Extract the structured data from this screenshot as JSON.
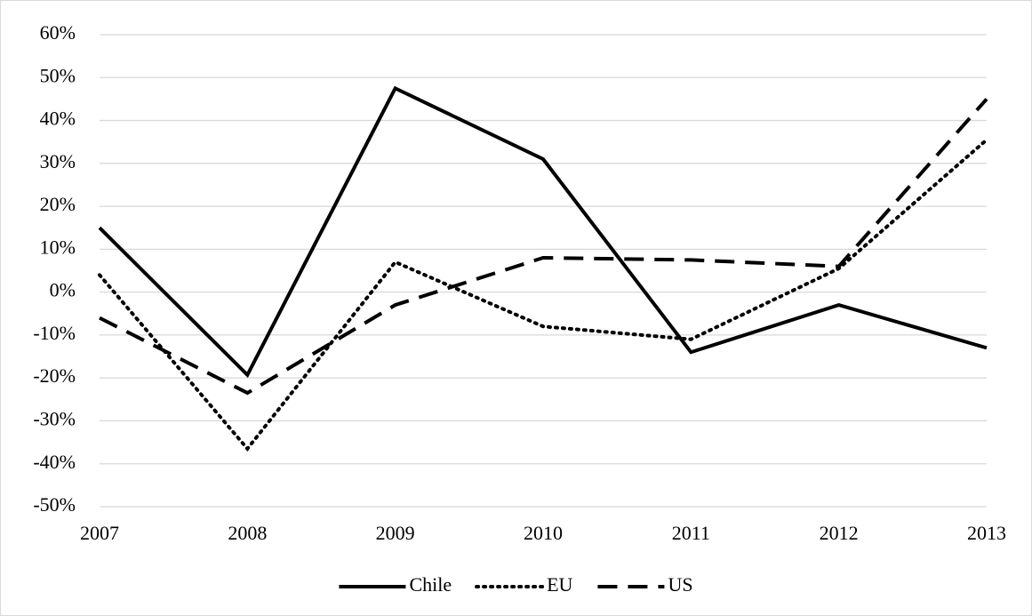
{
  "chart_data": {
    "type": "line",
    "x": [
      2007,
      2008,
      2009,
      2010,
      2011,
      2012,
      2013
    ],
    "xlim": [
      2007,
      2013
    ],
    "xticks": [
      2007,
      2008,
      2009,
      2010,
      2011,
      2012,
      2013
    ],
    "ylim": [
      -50,
      60
    ],
    "yticks": [
      {
        "value": -50,
        "label": "-50%"
      },
      {
        "value": -40,
        "label": "-40%"
      },
      {
        "value": -30,
        "label": "-30%"
      },
      {
        "value": -20,
        "label": "-20%"
      },
      {
        "value": -10,
        "label": "-10%"
      },
      {
        "value": 0,
        "label": "0%"
      },
      {
        "value": 10,
        "label": "10%"
      },
      {
        "value": 20,
        "label": "20%"
      },
      {
        "value": 30,
        "label": "30%"
      },
      {
        "value": 40,
        "label": "40%"
      },
      {
        "value": 50,
        "label": "50%"
      },
      {
        "value": 60,
        "label": "60%"
      }
    ],
    "grid": true,
    "legend": "bottom",
    "series": [
      {
        "name": "Chile",
        "color": "#000000",
        "style": "solid",
        "values": [
          15,
          -19.3,
          47.5,
          31,
          -14,
          -3,
          -13
        ]
      },
      {
        "name": "EU",
        "color": "#000000",
        "style": "dotted",
        "values": [
          4,
          -36.5,
          7,
          -8,
          -11,
          5.5,
          35.5
        ]
      },
      {
        "name": "US",
        "color": "#000000",
        "style": "dashed",
        "values": [
          -6,
          -23.5,
          -3,
          8,
          7.5,
          6,
          45
        ]
      }
    ]
  }
}
